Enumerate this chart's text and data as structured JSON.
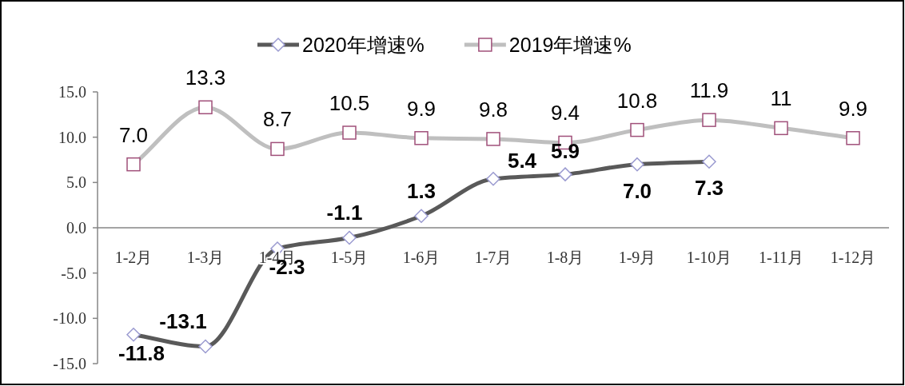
{
  "chart_data": {
    "type": "line",
    "categories": [
      "1-2月",
      "1-3月",
      "1-4月",
      "1-5月",
      "1-6月",
      "1-7月",
      "1-8月",
      "1-9月",
      "1-10月",
      "1-11月",
      "1-12月"
    ],
    "series": [
      {
        "name": "2020年增速%",
        "color": "#595959",
        "marker": "diamond",
        "values": [
          -11.8,
          -13.1,
          -2.3,
          -1.1,
          1.3,
          5.4,
          5.9,
          7.0,
          7.3,
          null,
          null
        ],
        "value_labels": [
          "-11.8",
          "-13.1",
          "-2.3",
          "-1.1",
          "1.3",
          "5.4",
          "5.9",
          "7.0",
          "7.3",
          null,
          null
        ]
      },
      {
        "name": "2019年增速%",
        "color": "#bfbfbf",
        "marker": "square",
        "values": [
          7.0,
          13.3,
          8.7,
          10.5,
          9.9,
          9.8,
          9.4,
          10.8,
          11.9,
          11,
          9.9
        ],
        "value_labels": [
          "7.0",
          "13.3",
          "8.7",
          "10.5",
          "9.9",
          "9.8",
          "9.4",
          "10.8",
          "11.9",
          "11",
          "9.9"
        ]
      }
    ],
    "ylim": [
      -15,
      15
    ],
    "yticks": [
      {
        "value": -15,
        "label": "-15.0"
      },
      {
        "value": -10,
        "label": "-10.0"
      },
      {
        "value": -5,
        "label": "-5.0"
      },
      {
        "value": 0,
        "label": "0.0"
      },
      {
        "value": 5,
        "label": "5.0"
      },
      {
        "value": 10,
        "label": "10.0"
      },
      {
        "value": 15,
        "label": "15.0"
      }
    ],
    "legend": "top",
    "grid": false
  }
}
